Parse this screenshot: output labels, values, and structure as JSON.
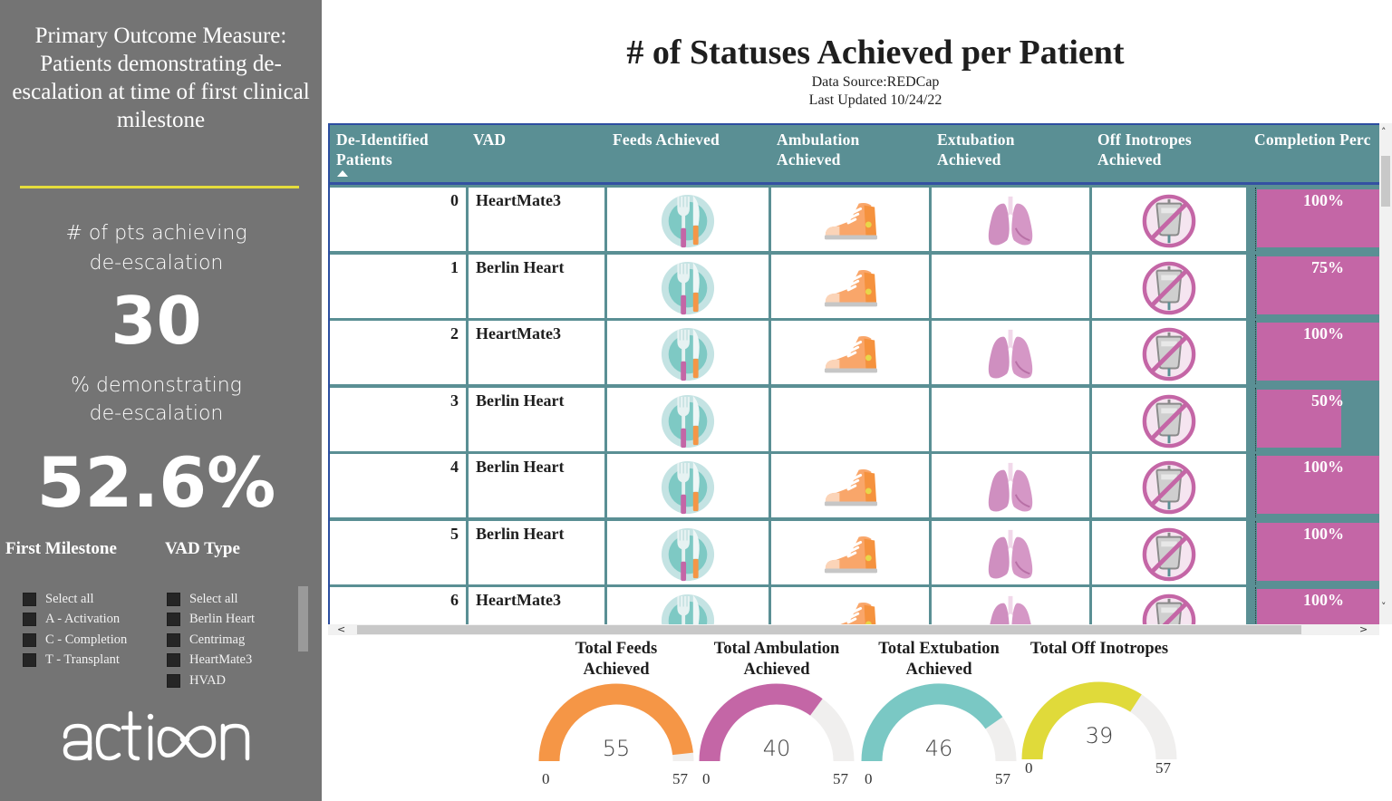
{
  "sidebar": {
    "title": "Primary Outcome Measure: Patients demonstrating de-escalation at time of first clinical milestone",
    "kpi1_label_line1": "# of pts achieving",
    "kpi1_label_line2": "de-escalation",
    "kpi1_value": "30",
    "kpi2_label_line1": "% demonstrating",
    "kpi2_label_line2": "de-escalation",
    "kpi2_value": "52.6%",
    "accent_color": "#e4dc3c",
    "slicers": {
      "first_milestone": {
        "title": "First Milestone",
        "items": [
          "Select all",
          "A - Activation",
          "C - Completion",
          "T - Transplant"
        ]
      },
      "vad_type": {
        "title": "VAD Type",
        "items": [
          "Select all",
          "Berlin Heart",
          "Centrimag",
          "HeartMate3",
          "HVAD"
        ]
      }
    },
    "logo_text": "action"
  },
  "header": {
    "title": "# of Statuses Achieved per Patient",
    "data_source": "Data Source:REDCap",
    "last_updated": "Last Updated 10/24/22"
  },
  "table": {
    "columns": [
      {
        "label_line1": "De-Identified",
        "label_line2": "Patients",
        "sorted": "ascending"
      },
      {
        "label_line1": "VAD",
        "label_line2": ""
      },
      {
        "label_line1": "Feeds Achieved",
        "label_line2": ""
      },
      {
        "label_line1": "Ambulation",
        "label_line2": "Achieved"
      },
      {
        "label_line1": "Extubation",
        "label_line2": "Achieved"
      },
      {
        "label_line1": "Off Inotropes",
        "label_line2": "Achieved"
      },
      {
        "label_line1": "Completion Perc",
        "label_line2": ""
      }
    ],
    "rows": [
      {
        "id": "0",
        "vad": "HeartMate3",
        "feeds": true,
        "ambulation": true,
        "extubation": true,
        "off_inotropes": true,
        "completion": "100%",
        "completion_value": 100
      },
      {
        "id": "1",
        "vad": "Berlin Heart",
        "feeds": true,
        "ambulation": true,
        "extubation": false,
        "off_inotropes": true,
        "completion": "75%",
        "completion_value": 75
      },
      {
        "id": "2",
        "vad": "HeartMate3",
        "feeds": true,
        "ambulation": true,
        "extubation": true,
        "off_inotropes": true,
        "completion": "100%",
        "completion_value": 100
      },
      {
        "id": "3",
        "vad": "Berlin Heart",
        "feeds": true,
        "ambulation": false,
        "extubation": false,
        "off_inotropes": true,
        "completion": "50%",
        "completion_value": 50
      },
      {
        "id": "4",
        "vad": "Berlin Heart",
        "feeds": true,
        "ambulation": true,
        "extubation": true,
        "off_inotropes": true,
        "completion": "100%",
        "completion_value": 100
      },
      {
        "id": "5",
        "vad": "Berlin Heart",
        "feeds": true,
        "ambulation": true,
        "extubation": true,
        "off_inotropes": true,
        "completion": "100%",
        "completion_value": 100
      },
      {
        "id": "6",
        "vad": "HeartMate3",
        "feeds": true,
        "ambulation": true,
        "extubation": true,
        "off_inotropes": true,
        "completion": "100%",
        "completion_value": 100
      }
    ],
    "icons": {
      "feeds": "plate-fork-knife-icon",
      "ambulation": "sneaker-icon",
      "extubation": "lungs-icon",
      "off_inotropes": "no-iv-bag-icon"
    },
    "colors": {
      "header_bg": "#5a8f94",
      "bar": "#c466a6",
      "border": "#3451a3"
    }
  },
  "gauges": [
    {
      "title_line1": "Total Feeds",
      "title_line2": "Achieved",
      "value": "55",
      "min": "0",
      "max": "57",
      "num": 55,
      "den": 57,
      "color": "#f59646"
    },
    {
      "title_line1": "Total Ambulation",
      "title_line2": "Achieved",
      "value": "40",
      "min": "0",
      "max": "57",
      "num": 40,
      "den": 57,
      "color": "#c466a6"
    },
    {
      "title_line1": "Total Extubation",
      "title_line2": "Achieved",
      "value": "46",
      "min": "0",
      "max": "57",
      "num": 46,
      "den": 57,
      "color": "#7ac8c4"
    },
    {
      "title_line1": "Total Off Inotropes",
      "title_line2": "",
      "value": "39",
      "min": "0",
      "max": "57",
      "num": 39,
      "den": 57,
      "color": "#e0da3a"
    }
  ]
}
